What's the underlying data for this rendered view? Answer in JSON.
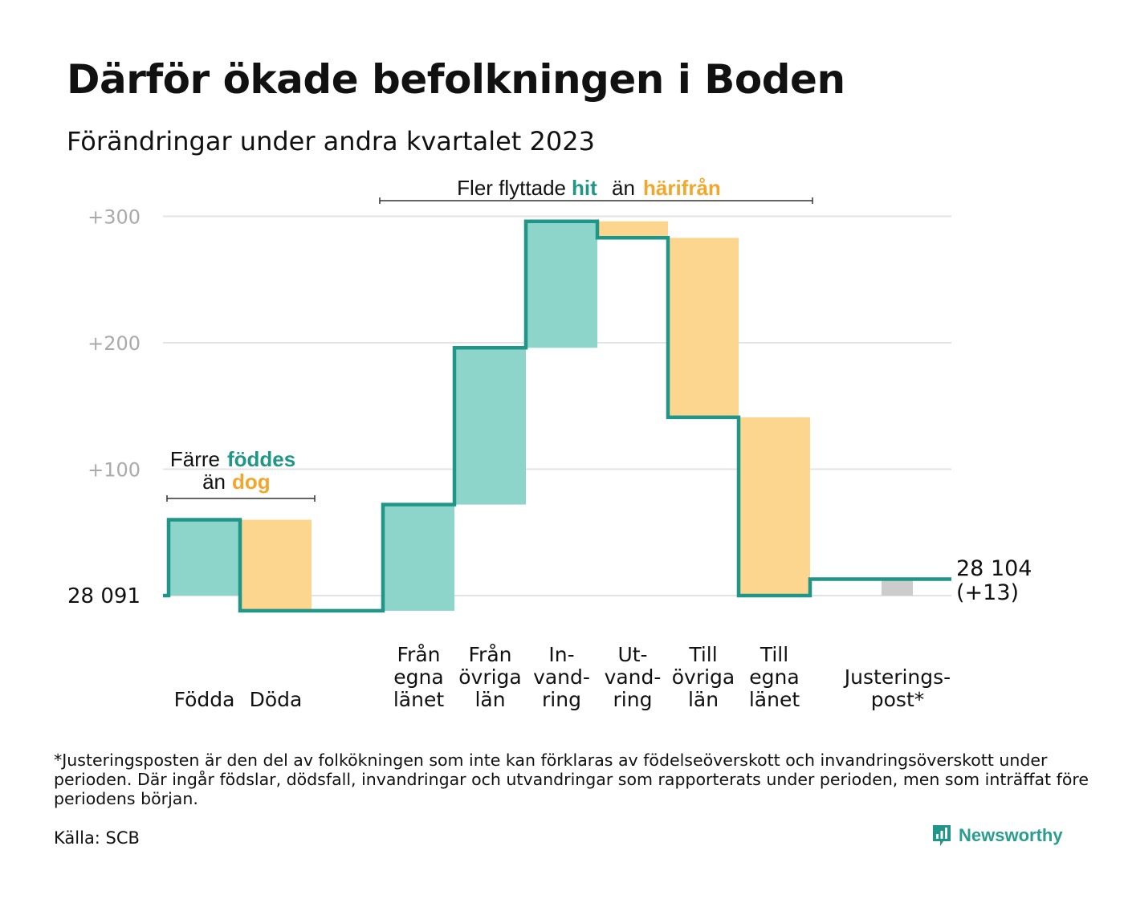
{
  "title": "Därför ökade befolkningen i Boden",
  "subtitle": "Förändringar under andra kvartalet 2023",
  "footnote": "*Justeringsposten är den del av folkökningen som inte kan förklaras av födelseöverskott och invandringsöverskott under perioden. Där ingår födslar, dödsfall, invandringar och utvandringar som rapporterats under perioden, men som inträffat före periodens början.",
  "source": "Källa: SCB",
  "brand": {
    "name": "Newsworthy",
    "icon": "newsworthy-logo-icon"
  },
  "colors": {
    "line": "#1f9688",
    "increase": "#8dd5ca",
    "decrease": "#fcd68f",
    "adjustment": "#cccccc",
    "hit": "#1f9688",
    "harifran": "#f2a62b",
    "grid": "#e3e3e3",
    "tick": "#aaaaaa"
  },
  "chart_data": {
    "type": "waterfall",
    "y_ticks": [
      "+300",
      "+200",
      "+100"
    ],
    "ylim": [
      -20,
      310
    ],
    "start": {
      "label": "28  091",
      "value": 0
    },
    "end": {
      "label": "28 104",
      "change": "(+13)",
      "value": 13
    },
    "grid": true,
    "steps": [
      {
        "label": [
          "Födda"
        ],
        "change": 60,
        "kind": "increase"
      },
      {
        "label": [
          "Döda"
        ],
        "change": -72,
        "kind": "decrease"
      },
      {
        "label": [
          "Från",
          "egna",
          "länet"
        ],
        "change": 84,
        "kind": "increase"
      },
      {
        "label": [
          "Från",
          "övriga",
          "län"
        ],
        "change": 124,
        "kind": "increase"
      },
      {
        "label": [
          "In-",
          "vand-",
          "ring"
        ],
        "change": 100,
        "kind": "increase"
      },
      {
        "label": [
          "Ut-",
          "vand-",
          "ring"
        ],
        "change": -13,
        "kind": "decrease"
      },
      {
        "label": [
          "Till",
          "övriga",
          "län"
        ],
        "change": -142,
        "kind": "decrease"
      },
      {
        "label": [
          "Till",
          "egna",
          "länet"
        ],
        "change": -141,
        "kind": "decrease"
      },
      {
        "label": [
          "Justerings-",
          "post*"
        ],
        "change": 13,
        "kind": "adjustment"
      }
    ],
    "annotations": [
      {
        "id": "births",
        "parts": [
          {
            "text": "Färre",
            "style": "plain"
          },
          {
            "text": "föddes",
            "style": "hit"
          },
          {
            "text": "än",
            "style": "plain"
          },
          {
            "text": "dog",
            "style": "harifran"
          }
        ]
      },
      {
        "id": "migration",
        "parts": [
          {
            "text": "Fler flyttade",
            "style": "plain"
          },
          {
            "text": "hit",
            "style": "hit"
          },
          {
            "text": "än",
            "style": "plain"
          },
          {
            "text": "härifrån",
            "style": "harifran"
          }
        ]
      }
    ]
  }
}
